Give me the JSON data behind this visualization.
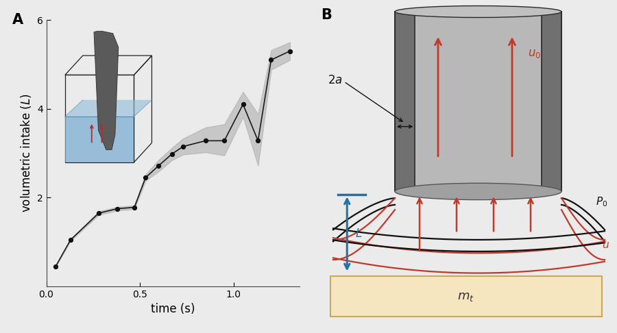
{
  "panel_A_label": "A",
  "panel_B_label": "B",
  "time": [
    0.05,
    0.13,
    0.28,
    0.38,
    0.47,
    0.53,
    0.6,
    0.67,
    0.73,
    0.85,
    0.95,
    1.05,
    1.13,
    1.2,
    1.3
  ],
  "volume": [
    0.45,
    1.05,
    1.65,
    1.75,
    1.78,
    2.45,
    2.72,
    2.98,
    3.15,
    3.28,
    3.28,
    4.1,
    3.28,
    5.1,
    5.3
  ],
  "volume_upper": [
    0.46,
    1.07,
    1.69,
    1.79,
    1.82,
    2.52,
    2.85,
    3.12,
    3.33,
    3.58,
    3.65,
    4.38,
    3.88,
    5.32,
    5.5
  ],
  "volume_lower": [
    0.44,
    1.03,
    1.61,
    1.71,
    1.74,
    2.38,
    2.59,
    2.84,
    2.97,
    3.02,
    2.95,
    3.82,
    2.72,
    4.88,
    5.1
  ],
  "xlim": [
    0,
    1.35
  ],
  "ylim": [
    0,
    6
  ],
  "xlabel": "time (s)",
  "ylabel": "volumetric intake (L)",
  "xticks": [
    0,
    0.5,
    1.0
  ],
  "yticks": [
    2,
    4,
    6
  ],
  "bg_color": "#ebebeb",
  "line_color": "#1a1a1a",
  "fill_color": "#aaaaaa",
  "dot_color": "#111111",
  "arrow_red": "#c0392b",
  "arrow_blue": "#2471a3",
  "cylinder_gray": "#b8b8b8",
  "wall_dark": "#6a6a6a",
  "plate_color": "#f5e6c0",
  "plate_edge": "#c8a860",
  "label_fontsize": 12,
  "tick_fontsize": 10,
  "panel_label_fontsize": 15
}
